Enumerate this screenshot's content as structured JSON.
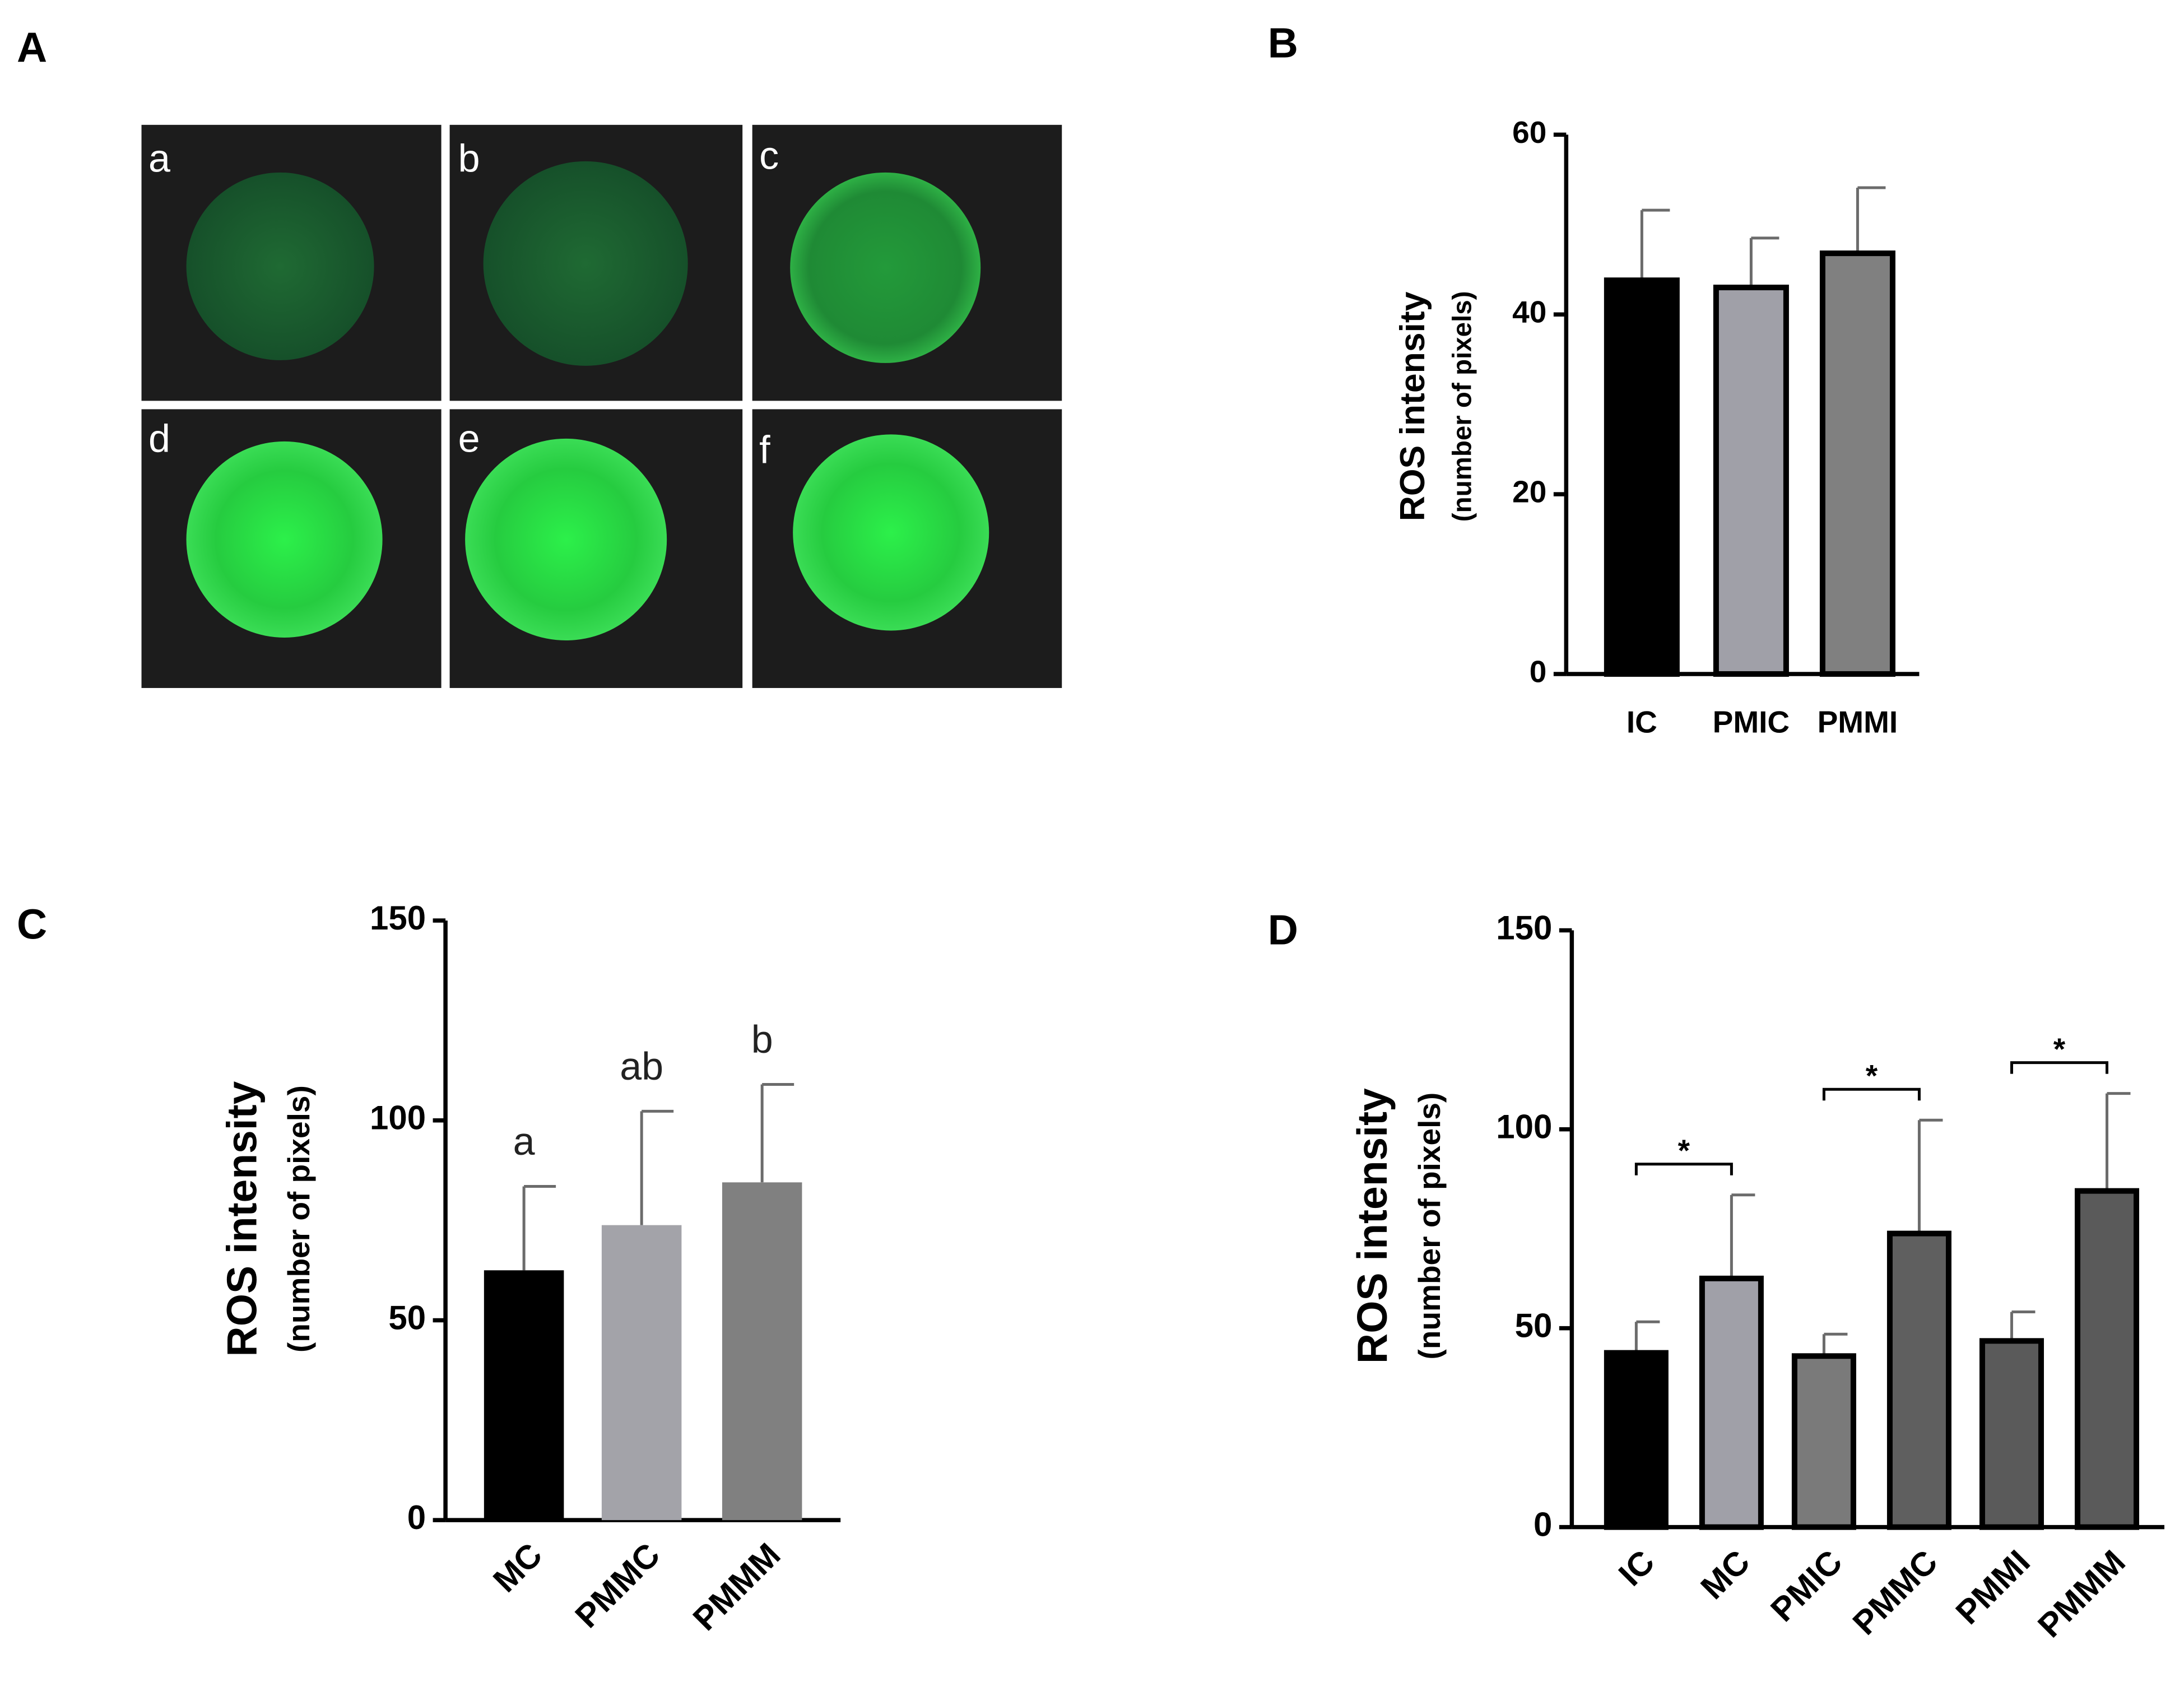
{
  "panel_labels": [
    "A",
    "B",
    "C",
    "D"
  ],
  "micrographs": {
    "labels": [
      "a",
      "b",
      "c",
      "d",
      "e",
      "f"
    ]
  },
  "chart_data": [
    {
      "type": "bar",
      "ylabel": "ROS intensity",
      "ylabel_sub": "(number of pixels)",
      "categories": [
        "IC",
        "PMIC",
        "PMMI"
      ],
      "values": [
        43.8,
        43,
        46.8
      ],
      "errors": [
        7.8,
        5.5,
        7.3
      ],
      "colors": [
        "#000000",
        "#a0a0a8",
        "#808080"
      ],
      "ylim": [
        0,
        60
      ],
      "yticks": [
        0,
        20,
        40,
        60
      ]
    },
    {
      "type": "bar",
      "ylabel": "ROS intensity",
      "ylabel_sub": "(number of pixels)",
      "categories": [
        "MC",
        "PMMC",
        "PMMM"
      ],
      "values": [
        62.5,
        73.8,
        84.5
      ],
      "errors": [
        21,
        28.5,
        24.5
      ],
      "annotations": [
        "a",
        "ab",
        "b"
      ],
      "colors": [
        "#000000",
        "#a3a3a9",
        "#808080"
      ],
      "ylim": [
        0,
        150
      ],
      "yticks": [
        0,
        50,
        100,
        150
      ]
    },
    {
      "type": "bar",
      "ylabel": "ROS intensity",
      "ylabel_sub": "(number of pixels)",
      "categories": [
        "IC",
        "MC",
        "PMIC",
        "PMMC",
        "PMMI",
        "PMMM"
      ],
      "values": [
        43.8,
        62.5,
        43,
        73.8,
        46.8,
        84.5
      ],
      "errors": [
        7.8,
        21,
        5.5,
        28.5,
        7.3,
        24.5
      ],
      "colors": [
        "#000000",
        "#a0a0a8",
        "#7a7a7a",
        "#5f5f5f",
        "#5a5a5a",
        "#5a5a5a"
      ],
      "brackets": [
        {
          "from": "IC",
          "to": "MC",
          "label": "*"
        },
        {
          "from": "PMIC",
          "to": "PMMC",
          "label": "*"
        },
        {
          "from": "PMMI",
          "to": "PMMM",
          "label": "*"
        }
      ],
      "ylim": [
        0,
        150
      ],
      "yticks": [
        0,
        50,
        100,
        150
      ]
    }
  ]
}
